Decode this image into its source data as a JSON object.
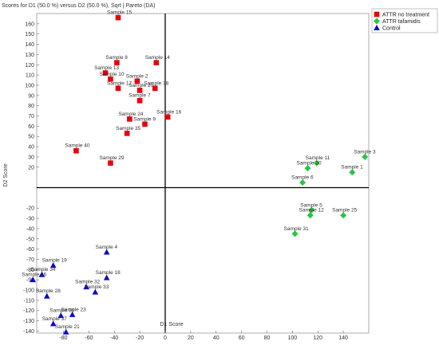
{
  "chart_data": {
    "type": "scatter",
    "title": "Scores for D1 (50.0 %) versus D2 (50.0 %), Sqrt | Pareto (DA)",
    "xlabel": "D1 Score",
    "ylabel": "D2 Score",
    "xlim": [
      -101,
      160
    ],
    "ylim": [
      -142,
      170
    ],
    "xticks": [
      -80,
      -60,
      -40,
      -20,
      0,
      20,
      40,
      60,
      80,
      100,
      120,
      140
    ],
    "yticks": [
      -140,
      -130,
      -120,
      -110,
      -100,
      -90,
      -80,
      -70,
      -60,
      -50,
      -40,
      -30,
      -20,
      20,
      30,
      40,
      50,
      60,
      70,
      80,
      90,
      100,
      110,
      120,
      130,
      140,
      150,
      160
    ],
    "legend_position": "top-right",
    "series": [
      {
        "name": "ATTR no treatment",
        "color": "#e8000b",
        "marker": "square",
        "points": [
          {
            "label": "Sample 15",
            "x": -37,
            "y": 166
          },
          {
            "label": "Sample 8",
            "x": -38,
            "y": 122
          },
          {
            "label": "Sample 14",
            "x": -7,
            "y": 122
          },
          {
            "label": "Sample 13",
            "x": -47,
            "y": 112
          },
          {
            "label": "Sample 10",
            "x": -43,
            "y": 106
          },
          {
            "label": "Sample 17",
            "x": -37,
            "y": 97
          },
          {
            "label": "Sample 2",
            "x": -22,
            "y": 104
          },
          {
            "label": "Sample 38",
            "x": -8,
            "y": 97
          },
          {
            "label": "Sample 20",
            "x": -20,
            "y": 95
          },
          {
            "label": "Sample 7",
            "x": -20,
            "y": 85
          },
          {
            "label": "Sample 16",
            "x": 2,
            "y": 69
          },
          {
            "label": "Sample 24",
            "x": -28,
            "y": 67
          },
          {
            "label": "Sample 9",
            "x": -16,
            "y": 62
          },
          {
            "label": "Sample 35",
            "x": -30,
            "y": 53
          },
          {
            "label": "Sample 40",
            "x": -70,
            "y": 36
          },
          {
            "label": "Sample 29",
            "x": -43,
            "y": 24
          }
        ]
      },
      {
        "name": "ATTR tafamidis",
        "color": "#22c93c",
        "marker": "diamond",
        "points": [
          {
            "label": "Sample 3",
            "x": 157,
            "y": 30
          },
          {
            "label": "Sample 11",
            "x": 119,
            "y": 24
          },
          {
            "label": "Sample 30",
            "x": 112,
            "y": 19
          },
          {
            "label": "Sample 1",
            "x": 147,
            "y": 15
          },
          {
            "label": "Sample 6",
            "x": 108,
            "y": 5
          },
          {
            "label": "Sample 5",
            "x": 115,
            "y": -22
          },
          {
            "label": "Sample 12",
            "x": 114,
            "y": -27
          },
          {
            "label": "Sample 25",
            "x": 140,
            "y": -27
          },
          {
            "label": "Sample 31",
            "x": 102,
            "y": -45
          }
        ]
      },
      {
        "name": "Control",
        "color": "#0a0ad0",
        "marker": "triangle",
        "points": [
          {
            "label": "Sample 4",
            "x": -46,
            "y": -63
          },
          {
            "label": "Sample 19",
            "x": -88,
            "y": -76
          },
          {
            "label": "Sample 34",
            "x": -97,
            "y": -85
          },
          {
            "label": "Sample 18",
            "x": -46,
            "y": -88
          },
          {
            "label": "Sample 32",
            "x": -62,
            "y": -97
          },
          {
            "label": "Sample 33",
            "x": -55,
            "y": -102
          },
          {
            "label": "Sample 28",
            "x": -93,
            "y": -106
          },
          {
            "label": "Sample 39",
            "x": -82,
            "y": -125
          },
          {
            "label": "Sample 23",
            "x": -73,
            "y": -124
          },
          {
            "label": "Sample 37",
            "x": -88,
            "y": -133
          },
          {
            "label": "Sample 21",
            "x": -78,
            "y": -141
          },
          {
            "label": "Sample 26",
            "x": -104,
            "y": -90
          }
        ]
      }
    ]
  }
}
